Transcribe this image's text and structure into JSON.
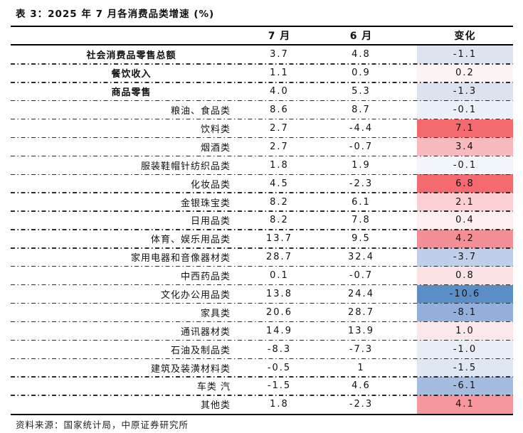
{
  "title": "表 3：2025 年 7 月各消费品类增速 (%)",
  "footer": "资料来源：国家统计局，中原证券研究所",
  "table": {
    "columns": {
      "label": "",
      "jul": "7 月",
      "jun": "6 月",
      "change": "变化"
    },
    "rows": [
      {
        "label": "社会消费品零售总额",
        "bold": true,
        "jul": "3.7",
        "jun": "4.8",
        "change": "-1.1",
        "change_bg": "#dde4f0"
      },
      {
        "label": "餐饮收入",
        "bold": true,
        "jul": "1.1",
        "jun": "0.9",
        "change": "0.2",
        "change_bg": "#fdf4f5"
      },
      {
        "label": "商品零售",
        "bold": true,
        "jul": "4.0",
        "jun": "5.3",
        "change": "-1.3",
        "change_bg": "#dce3ef"
      },
      {
        "label": "粮油、食品类",
        "bold": false,
        "jul": "8.6",
        "jun": "8.7",
        "change": "-0.1",
        "change_bg": "#ecf0f8"
      },
      {
        "label": "饮料类",
        "bold": false,
        "jul": "2.7",
        "jun": "-4.4",
        "change": "7.1",
        "change_bg": "#f4696e"
      },
      {
        "label": "烟酒类",
        "bold": false,
        "jul": "2.7",
        "jun": "-0.7",
        "change": "3.4",
        "change_bg": "#f8babd"
      },
      {
        "label": "服装鞋帽针纺织品类",
        "bold": false,
        "jul": "1.8",
        "jun": "1.9",
        "change": "-0.1",
        "change_bg": "#f3f5fa"
      },
      {
        "label": "化妆品类",
        "bold": false,
        "jul": "4.5",
        "jun": "-2.3",
        "change": "6.8",
        "change_bg": "#f46a6e"
      },
      {
        "label": "金银珠宝类",
        "bold": false,
        "jul": "8.2",
        "jun": "6.1",
        "change": "2.1",
        "change_bg": "#f9cfd3"
      },
      {
        "label": "日用品类",
        "bold": false,
        "jul": "8.2",
        "jun": "7.8",
        "change": "0.4",
        "change_bg": "#fdeef0"
      },
      {
        "label": "体育、娱乐用品类",
        "bold": false,
        "jul": "13.7",
        "jun": "9.5",
        "change": "4.2",
        "change_bg": "#f58f96"
      },
      {
        "label": "家用电器和音像器材类",
        "bold": false,
        "jul": "28.7",
        "jun": "32.4",
        "change": "-3.7",
        "change_bg": "#bfcfe7"
      },
      {
        "label": "中西药品类",
        "bold": false,
        "jul": "0.1",
        "jun": "-0.7",
        "change": "0.8",
        "change_bg": "#fbe2e5"
      },
      {
        "label": "文化办公用品类",
        "bold": false,
        "jul": "13.8",
        "jun": "24.4",
        "change": "-10.6",
        "change_bg": "#5b8dc7"
      },
      {
        "label": "家具类",
        "bold": false,
        "jul": "20.6",
        "jun": "28.7",
        "change": "-8.1",
        "change_bg": "#92b0da"
      },
      {
        "label": "通讯器材类",
        "bold": false,
        "jul": "14.9",
        "jun": "13.9",
        "change": "1.0",
        "change_bg": "#fce8ea"
      },
      {
        "label": "石油及制品类",
        "bold": false,
        "jul": "-8.3",
        "jun": "-7.3",
        "change": "-1.0",
        "change_bg": "#e9edf6"
      },
      {
        "label": "建筑及装潢材料类",
        "bold": false,
        "jul": "-0.5",
        "jun": "1",
        "change": "-1.5",
        "change_bg": "#dfe7f3"
      },
      {
        "label": "车类 汽",
        "bold": false,
        "jul": "-1.5",
        "jun": "4.6",
        "change": "-6.1",
        "change_bg": "#a3bcdf"
      },
      {
        "label": "其他类",
        "bold": false,
        "jul": "1.8",
        "jun": "-2.3",
        "change": "4.1",
        "change_bg": "#f7969c"
      }
    ]
  }
}
